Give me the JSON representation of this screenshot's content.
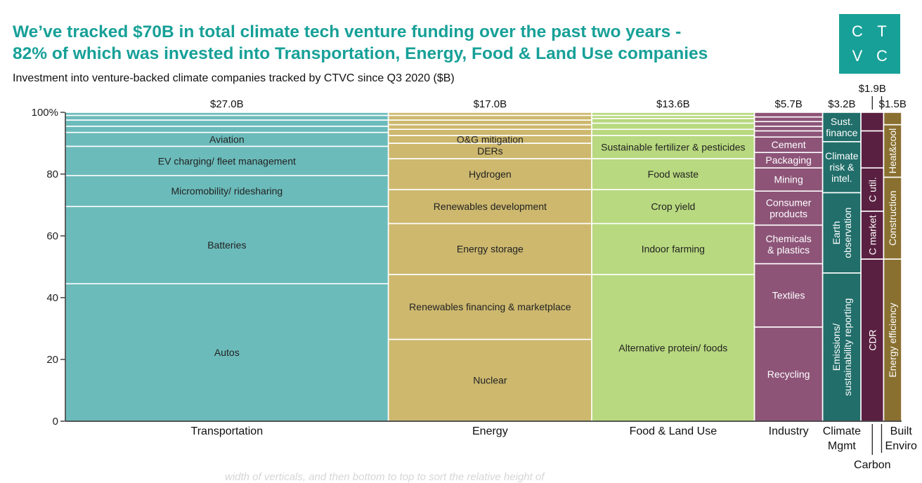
{
  "headline": {
    "line1": "We’ve tracked $70B in total climate tech venture funding over the past two years -",
    "line2": "82% of which was invested into Transportation, Energy, Food & Land Use companies"
  },
  "subtitle": "Investment into venture-backed climate companies tracked by CTVC since Q3 2020 ($B)",
  "logo": {
    "letters": [
      "C",
      "T",
      "V",
      "C"
    ],
    "color": "#17a098"
  },
  "faint_caption": "width of verticals, and then bottom to top to sort the relative height of",
  "chart_data": {
    "type": "bar",
    "subtype": "marimekko",
    "ylim": [
      0,
      100
    ],
    "yticks": [
      "0",
      "20",
      "40",
      "60",
      "80",
      "100%"
    ],
    "ytick_values": [
      0,
      20,
      40,
      60,
      80,
      100
    ],
    "columns": [
      {
        "name": "Transportation",
        "label_lines": [
          "Transportation"
        ],
        "total": 27.0,
        "total_label": "$27.0B",
        "color": "#6cbbbb",
        "segments": [
          {
            "name": "Autos",
            "pct": 44.5
          },
          {
            "name": "Batteries",
            "pct": 25.0
          },
          {
            "name": "Micromobility/ ridesharing",
            "pct": 10.0
          },
          {
            "name": "EV charging/ fleet management",
            "pct": 9.5
          },
          {
            "name": "Aviation",
            "pct": 4.5
          },
          {
            "name": "",
            "pct": 2.0
          },
          {
            "name": "",
            "pct": 2.0
          },
          {
            "name": "",
            "pct": 1.5
          },
          {
            "name": "",
            "pct": 1.0
          }
        ]
      },
      {
        "name": "Energy",
        "label_lines": [
          "Energy"
        ],
        "total": 17.0,
        "total_label": "$17.0B",
        "color": "#cdb86e",
        "segments": [
          {
            "name": "Nuclear",
            "pct": 26.5
          },
          {
            "name": "Renewables financing & marketplace",
            "pct": 21.0
          },
          {
            "name": "Energy storage",
            "pct": 16.5
          },
          {
            "name": "Renewables development",
            "pct": 11.0
          },
          {
            "name": "Hydrogen",
            "pct": 10.0
          },
          {
            "name": "DERs",
            "pct": 5.0
          },
          {
            "name": "O&G mitigation",
            "pct": 2.5
          },
          {
            "name": "",
            "pct": 2.0
          },
          {
            "name": "",
            "pct": 1.5
          },
          {
            "name": "",
            "pct": 1.5
          },
          {
            "name": "",
            "pct": 1.5
          },
          {
            "name": "",
            "pct": 1.0
          }
        ]
      },
      {
        "name": "Food & Land Use",
        "label_lines": [
          "Food & Land Use"
        ],
        "total": 13.6,
        "total_label": "$13.6B",
        "color": "#b8d97f",
        "segments": [
          {
            "name": "Alternative protein/ foods",
            "pct": 47.5
          },
          {
            "name": "Indoor farming",
            "pct": 16.5
          },
          {
            "name": "Crop yield",
            "pct": 11.0
          },
          {
            "name": "Food waste",
            "pct": 10.0
          },
          {
            "name": "Sustainable fertilizer & pesticides",
            "pct": 7.5
          },
          {
            "name": "",
            "pct": 2.0
          },
          {
            "name": "",
            "pct": 2.0
          },
          {
            "name": "",
            "pct": 1.5
          },
          {
            "name": "",
            "pct": 1.0
          },
          {
            "name": "",
            "pct": 1.0
          }
        ]
      },
      {
        "name": "Industry",
        "label_lines": [
          "Industry"
        ],
        "total": 5.7,
        "total_label": "$5.7B",
        "color": "#8d5478",
        "segments": [
          {
            "name": "Recycling",
            "pct": 30.5
          },
          {
            "name": "Textiles",
            "pct": 20.5
          },
          {
            "name": "Chemicals & plastics",
            "lines": [
              "Chemicals",
              "& plastics"
            ],
            "pct": 12.5
          },
          {
            "name": "Consumer products",
            "lines": [
              "Consumer",
              "products"
            ],
            "pct": 11.0
          },
          {
            "name": "Mining",
            "pct": 7.5
          },
          {
            "name": "Packaging",
            "pct": 5.0
          },
          {
            "name": "Cement",
            "pct": 5.0
          },
          {
            "name": "",
            "pct": 2.0
          },
          {
            "name": "",
            "pct": 1.5
          },
          {
            "name": "",
            "pct": 1.5
          },
          {
            "name": "",
            "pct": 1.5
          },
          {
            "name": "",
            "pct": 1.5
          }
        ]
      },
      {
        "name": "Climate Mgmt",
        "label_lines": [
          "Climate",
          "Mgmt"
        ],
        "total": 3.2,
        "total_label": "$3.2B",
        "color": "#216e6a",
        "segments": [
          {
            "name": "Emissions/ sustainability reporting",
            "lines": [
              "Emissions/",
              "sustainability reporting"
            ],
            "pct": 48.0,
            "rotate": true
          },
          {
            "name": "Earth observation",
            "lines": [
              "Earth",
              "observation"
            ],
            "pct": 26.0,
            "rotate": true
          },
          {
            "name": "Climate risk & intel.",
            "lines": [
              "Climate",
              "risk &",
              "intel."
            ],
            "pct": 16.5
          },
          {
            "name": "Sust. finance",
            "lines": [
              "Sust.",
              "finance"
            ],
            "pct": 9.5
          }
        ]
      },
      {
        "name": "Carbon",
        "label_lines": [
          "Carbon"
        ],
        "total": 1.9,
        "total_label": "$1.9B",
        "color": "#5a2041",
        "segments": [
          {
            "name": "CDR",
            "pct": 52.5,
            "rotate": true
          },
          {
            "name": "C market",
            "pct": 15.5,
            "rotate": true
          },
          {
            "name": "C util.",
            "pct": 14.0,
            "rotate": true
          },
          {
            "name": "",
            "pct": 12.0
          },
          {
            "name": "",
            "pct": 6.0
          }
        ]
      },
      {
        "name": "Built Enviro",
        "label_lines": [
          "Built",
          "Enviro"
        ],
        "total": 1.5,
        "total_label": "$1.5B",
        "color": "#8a7030",
        "segments": [
          {
            "name": "Energy efficiency",
            "pct": 52.5,
            "rotate": true
          },
          {
            "name": "Construction",
            "pct": 26.5,
            "rotate": true
          },
          {
            "name": "Heat&cool",
            "pct": 17.0,
            "rotate": true
          },
          {
            "name": "",
            "pct": 4.0
          }
        ]
      }
    ]
  }
}
